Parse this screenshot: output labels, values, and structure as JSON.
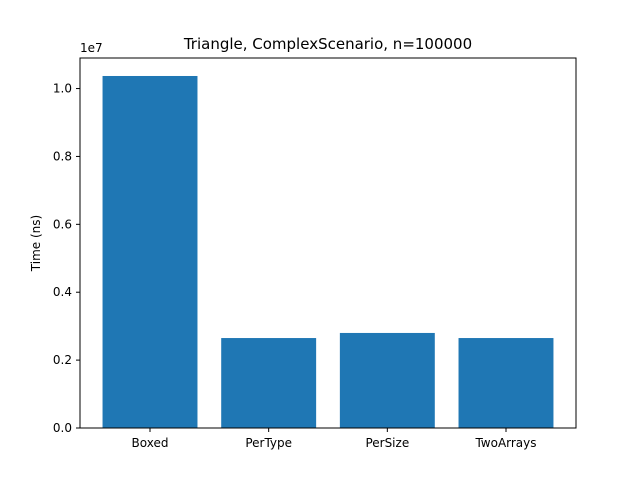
{
  "chart_data": {
    "type": "bar",
    "title": "Triangle, ComplexScenario, n=100000",
    "xlabel": "",
    "ylabel": "Time (ns)",
    "y_scale_label": "1e7",
    "categories": [
      "Boxed",
      "PerType",
      "PerSize",
      "TwoArrays"
    ],
    "values": [
      10370000,
      2650000,
      2800000,
      2650000
    ],
    "ylim": [
      0,
      10900000
    ],
    "yticks": [
      0,
      2000000,
      4000000,
      6000000,
      8000000,
      10000000
    ],
    "ytick_labels": [
      "0.0",
      "0.2",
      "0.4",
      "0.6",
      "0.8",
      "1.0"
    ],
    "bar_color": "#1f77b4",
    "grid": false,
    "legend": "none"
  }
}
